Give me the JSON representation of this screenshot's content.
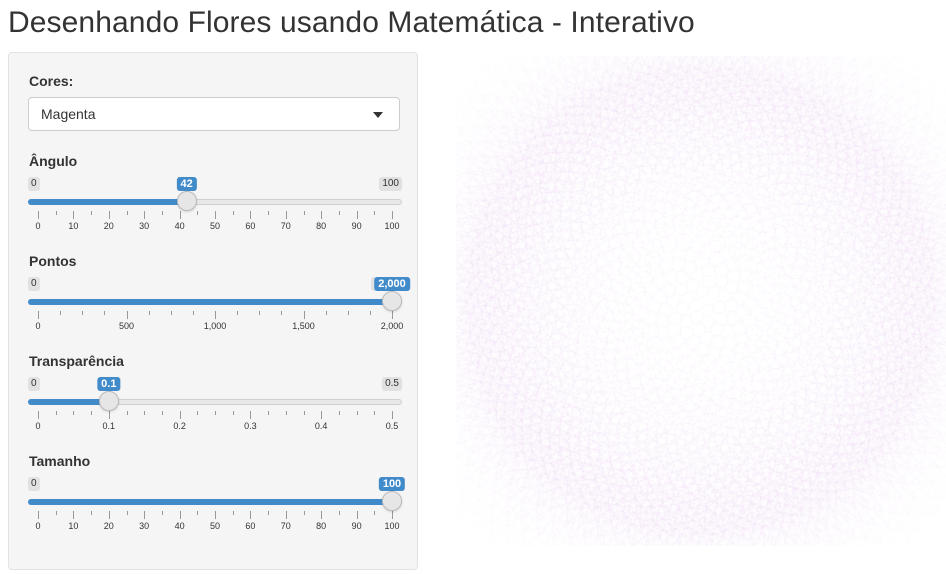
{
  "title": "Desenhando Flores usando Matemática - Interativo",
  "colors": {
    "accent": "#428bca",
    "flower": "#a020c8"
  },
  "cores": {
    "label": "Cores:",
    "selected": "Magenta"
  },
  "sliders": [
    {
      "id": "angulo",
      "label": "Ângulo",
      "min": 0,
      "max": 100,
      "value": 42,
      "min_label": "0",
      "max_label": "100",
      "value_label": "42",
      "ticks": [
        "0",
        "10",
        "20",
        "30",
        "40",
        "50",
        "60",
        "70",
        "80",
        "90",
        "100"
      ]
    },
    {
      "id": "pontos",
      "label": "Pontos",
      "min": 0,
      "max": 2000,
      "value": 2000,
      "min_label": "0",
      "max_label": "2,000",
      "value_label": "2,000",
      "ticks": [
        "0",
        "500",
        "1,000",
        "1,500",
        "2,000"
      ]
    },
    {
      "id": "transparencia",
      "label": "Transparência",
      "min": 0,
      "max": 0.5,
      "value": 0.1,
      "min_label": "0",
      "max_label": "0.5",
      "value_label": "0.1",
      "ticks": [
        "0",
        "0.1",
        "0.2",
        "0.3",
        "0.4",
        "0.5"
      ]
    },
    {
      "id": "tamanho",
      "label": "Tamanho",
      "min": 0,
      "max": 100,
      "value": 100,
      "min_label": "0",
      "max_label": "100",
      "value_label": "100",
      "ticks": [
        "0",
        "10",
        "20",
        "30",
        "40",
        "50",
        "60",
        "70",
        "80",
        "90",
        "100"
      ]
    }
  ]
}
